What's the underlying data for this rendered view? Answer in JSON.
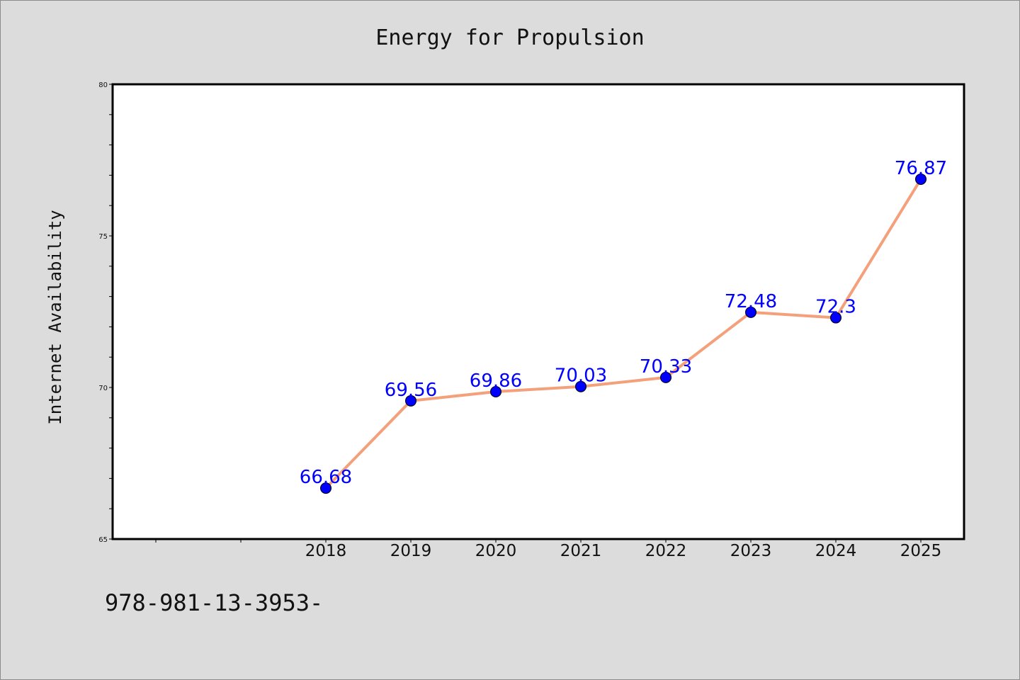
{
  "chart_data": {
    "type": "line",
    "title": "Energy for Propulsion",
    "xlabel": "",
    "ylabel": "Internet Availability",
    "categories": [
      "2018",
      "2019",
      "2020",
      "2021",
      "2022",
      "2023",
      "2024",
      "2025"
    ],
    "series": [
      {
        "values": [
          66.68,
          69.56,
          69.86,
          70.03,
          70.33,
          72.48,
          72.3,
          76.87
        ],
        "labels": [
          "66.68",
          "69.56",
          "69.86",
          "70.03",
          "70.33",
          "72.48",
          "72.3",
          "76.87"
        ]
      }
    ],
    "ylim": [
      65,
      80
    ],
    "yticks": [
      "65",
      "70",
      "75",
      "80"
    ],
    "grid": false,
    "line_color": "#f4a07a",
    "marker_color": "#0000ff",
    "label_color": "#0000ff"
  },
  "footnote": "978-981-13-3953-"
}
